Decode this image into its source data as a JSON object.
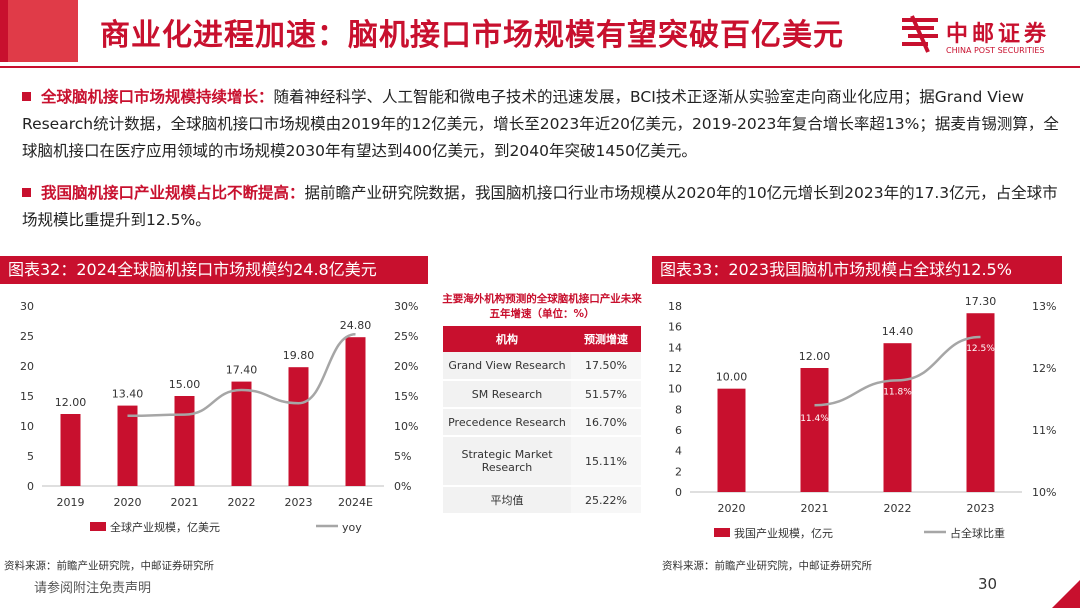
{
  "header": {
    "title": "商业化进程加速：脑机接口市场规模有望突破百亿美元",
    "logo_cn": "中邮证券",
    "logo_en": "CHINA POST SECURITIES"
  },
  "bullets": [
    {
      "keyword": "全球脑机接口市场规模持续增长：",
      "text": "随着神经科学、人工智能和微电子技术的迅速发展，BCI技术正逐渐从实验室走向商业化应用；据Grand View Research统计数据，全球脑机接口市场规模由2019年的12亿美元，增长至2023年近20亿美元，2019-2023年复合增长率超13%；据麦肯锡测算，全球脑机接口在医疗应用领域的市场规模2030年有望达到400亿美元，到2040年突破1450亿美元。"
    },
    {
      "keyword": "我国脑机接口产业规模占比不断提高：",
      "text": "据前瞻产业研究院数据，我国脑机接口行业市场规模从2020年的10亿元增长到2023年的17.3亿元，占全球市场规模比重提升到12.5%。"
    }
  ],
  "chart1": {
    "panel_title": "图表32：2024全球脑机接口市场规模约24.8亿美元",
    "source": "资料来源：前瞻产业研究院，中邮证券研究所"
  },
  "chart2": {
    "panel_title": "图表33：2023我国脑机市场规模占全球约12.5%",
    "source": "资料来源：前瞻产业研究院，中邮证券研究所"
  },
  "table": {
    "title": "主要海外机构预测的全球脑机接口产业未来五年增速（单位：%）",
    "headers": [
      "机构",
      "预测增速"
    ],
    "rows": [
      {
        "inst": "Grand View Research",
        "rate": "17.50%"
      },
      {
        "inst": "SM Research",
        "rate": "51.57%"
      },
      {
        "inst": "Precedence Research",
        "rate": "16.70%"
      },
      {
        "inst": "Strategic Market Research",
        "rate": "15.11%"
      },
      {
        "inst": "平均值",
        "rate": "25.22%"
      }
    ]
  },
  "chart_data": [
    {
      "type": "bar",
      "categories": [
        "2019",
        "2020",
        "2021",
        "2022",
        "2023",
        "2024E"
      ],
      "series": [
        {
          "name": "全球产业规模，亿美元",
          "type": "bar",
          "axis": "left",
          "values": [
            12.0,
            13.4,
            15.0,
            17.4,
            19.8,
            24.8
          ],
          "labels": [
            "12.00",
            "13.40",
            "15.00",
            "17.40",
            "19.80",
            "24.80"
          ]
        },
        {
          "name": "yoy",
          "type": "line",
          "axis": "right",
          "values": [
            null,
            11.7,
            11.9,
            16.0,
            13.8,
            25.3
          ]
        }
      ],
      "ylim_left": [
        0,
        30
      ],
      "yticks_left": [
        "0",
        "5",
        "10",
        "15",
        "20",
        "25",
        "30"
      ],
      "ylim_right": [
        0,
        30
      ],
      "yticks_right": [
        "0%",
        "5%",
        "10%",
        "15%",
        "20%",
        "25%",
        "30%"
      ],
      "bar_color": "#c8102e",
      "line_color": "#a6a6a6",
      "legend": "bottom"
    },
    {
      "type": "bar",
      "categories": [
        "2020",
        "2021",
        "2022",
        "2023"
      ],
      "series": [
        {
          "name": "我国产业规模，亿元",
          "type": "bar",
          "axis": "left",
          "values": [
            10.0,
            12.0,
            14.4,
            17.3
          ],
          "labels": [
            "10.00",
            "12.00",
            "14.40",
            "17.30"
          ]
        },
        {
          "name": "占全球比重",
          "type": "line",
          "axis": "right",
          "values": [
            null,
            11.4,
            11.8,
            12.5
          ],
          "labels": [
            "",
            "11.4%",
            "11.8%",
            "12.5%"
          ]
        }
      ],
      "ylim_left": [
        0,
        18
      ],
      "yticks_left": [
        "0",
        "2",
        "4",
        "6",
        "8",
        "10",
        "12",
        "14",
        "16",
        "18"
      ],
      "ylim_right": [
        10,
        13
      ],
      "yticks_right": [
        "10%",
        "11%",
        "12%",
        "13%"
      ],
      "bar_color": "#c8102e",
      "line_color": "#a6a6a6",
      "legend": "bottom"
    }
  ],
  "footer": {
    "note": "请参阅附注免责声明",
    "page": "30"
  }
}
